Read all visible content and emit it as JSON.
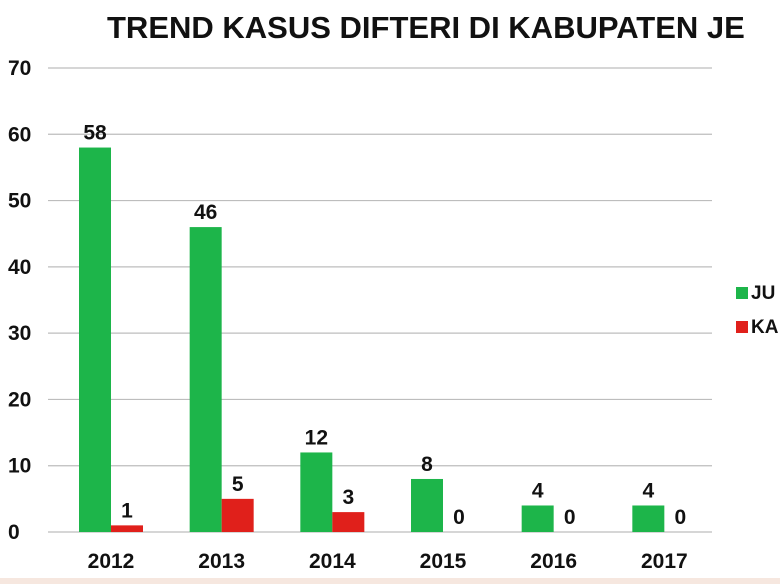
{
  "chart_data": {
    "type": "bar",
    "title": "TREND KASUS DIFTERI DI KABUPATEN JE",
    "categories": [
      "2012",
      "2013",
      "2014",
      "2015",
      "2016",
      "2017"
    ],
    "series": [
      {
        "name": "JU",
        "color": "#1db54a",
        "values": [
          58,
          46,
          12,
          8,
          4,
          4
        ]
      },
      {
        "name": "KA",
        "color": "#e0201b",
        "values": [
          1,
          5,
          3,
          0,
          0,
          0
        ]
      }
    ],
    "ylim": [
      0,
      70
    ],
    "yticks": [
      0,
      10,
      20,
      30,
      40,
      50,
      60,
      70
    ],
    "grid": true,
    "legend_position": "right",
    "xlabel": "",
    "ylabel": ""
  }
}
